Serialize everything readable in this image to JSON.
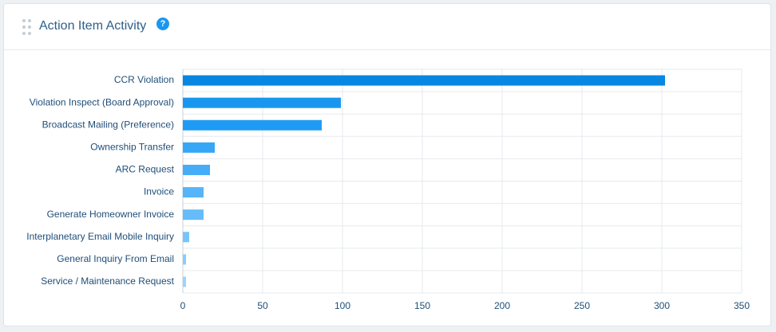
{
  "header": {
    "title": "Action Item Activity",
    "help": "?"
  },
  "chart_data": {
    "type": "hbar",
    "categories": [
      "CCR Violation",
      "Violation Inspect (Board Approval)",
      "Broadcast Mailing (Preference)",
      "Ownership Transfer",
      "ARC Request",
      "Invoice",
      "Generate Homeowner Invoice",
      "Interplanetary Email Mobile Inquiry",
      "General Inquiry From Email",
      "Service / Maintenance Request"
    ],
    "values": [
      302,
      99,
      87,
      20,
      17,
      13,
      13,
      4,
      2,
      2
    ],
    "colors": [
      "#0787e2",
      "#1a96f0",
      "#1f9bf5",
      "#36a6f7",
      "#45acf8",
      "#56b4f9",
      "#66bcfa",
      "#78c4fb",
      "#8acdfc",
      "#9bd4fc"
    ],
    "xlim": [
      0,
      350
    ],
    "xticks": [
      0,
      50,
      100,
      150,
      200,
      250,
      300,
      350
    ],
    "grid": true
  }
}
